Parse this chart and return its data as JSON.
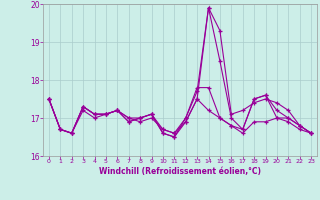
{
  "xlabel": "Windchill (Refroidissement éolien,°C)",
  "xlim": [
    -0.5,
    23.5
  ],
  "ylim": [
    16,
    20
  ],
  "yticks": [
    16,
    17,
    18,
    19,
    20
  ],
  "xticks": [
    0,
    1,
    2,
    3,
    4,
    5,
    6,
    7,
    8,
    9,
    10,
    11,
    12,
    13,
    14,
    15,
    16,
    17,
    18,
    19,
    20,
    21,
    22,
    23
  ],
  "bg_color": "#cceee8",
  "grid_color": "#aacccc",
  "line_color": "#990099",
  "series": [
    [
      17.5,
      16.7,
      16.6,
      17.3,
      17.1,
      17.1,
      17.2,
      16.9,
      17.0,
      17.1,
      16.6,
      16.5,
      17.0,
      17.7,
      19.9,
      19.3,
      17.1,
      17.2,
      17.4,
      17.5,
      17.4,
      17.2,
      16.8,
      16.6
    ],
    [
      17.5,
      16.7,
      16.6,
      17.3,
      17.1,
      17.1,
      17.2,
      16.9,
      17.0,
      17.1,
      16.6,
      16.5,
      16.9,
      17.5,
      19.9,
      18.5,
      17.0,
      16.7,
      17.5,
      17.6,
      17.2,
      17.0,
      16.8,
      16.6
    ],
    [
      17.5,
      16.7,
      16.6,
      17.3,
      17.1,
      17.1,
      17.2,
      17.0,
      17.0,
      17.1,
      16.7,
      16.6,
      17.0,
      17.8,
      17.8,
      17.0,
      16.8,
      16.7,
      17.5,
      17.6,
      17.0,
      17.0,
      16.8,
      16.6
    ],
    [
      17.5,
      16.7,
      16.6,
      17.2,
      17.0,
      17.1,
      17.2,
      17.0,
      16.9,
      17.0,
      16.7,
      16.6,
      16.9,
      17.5,
      17.2,
      17.0,
      16.8,
      16.6,
      16.9,
      16.9,
      17.0,
      16.9,
      16.7,
      16.6
    ]
  ]
}
